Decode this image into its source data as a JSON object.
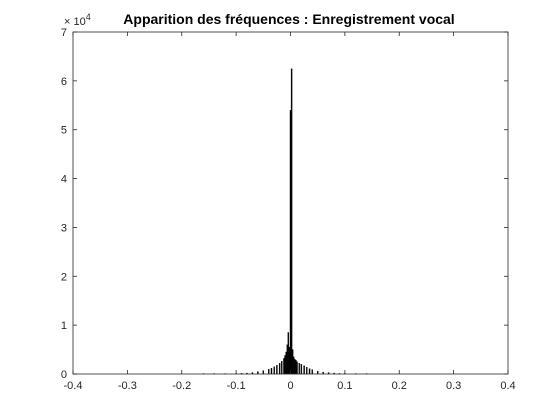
{
  "chart_data": {
    "type": "bar",
    "title": "Apparition des fréquences : Enregistrement vocal",
    "xlabel": "",
    "ylabel": "",
    "xlim": [
      -0.4,
      0.4
    ],
    "ylim": [
      0,
      7
    ],
    "y_multiplier_label": "× 10",
    "y_multiplier_exponent": "4",
    "x_ticks": [
      -0.4,
      -0.3,
      -0.2,
      -0.1,
      0,
      0.1,
      0.2,
      0.3,
      0.4
    ],
    "x_tick_labels": [
      "-0.4",
      "-0.3",
      "-0.2",
      "-0.1",
      "0",
      "0.1",
      "0.2",
      "0.3",
      "0.4"
    ],
    "y_ticks": [
      0,
      1,
      2,
      3,
      4,
      5,
      6,
      7
    ],
    "y_tick_labels": [
      "0",
      "1",
      "2",
      "3",
      "4",
      "5",
      "6",
      "7"
    ],
    "grid": false,
    "bar_color": "#000000",
    "bar_width": 0.002,
    "bins": [
      {
        "x": -0.16,
        "y": 0.002
      },
      {
        "x": -0.14,
        "y": 0.003
      },
      {
        "x": -0.12,
        "y": 0.005
      },
      {
        "x": -0.1,
        "y": 0.01
      },
      {
        "x": -0.09,
        "y": 0.015
      },
      {
        "x": -0.08,
        "y": 0.02
      },
      {
        "x": -0.07,
        "y": 0.03
      },
      {
        "x": -0.06,
        "y": 0.05
      },
      {
        "x": -0.05,
        "y": 0.07
      },
      {
        "x": -0.04,
        "y": 0.1
      },
      {
        "x": -0.035,
        "y": 0.12
      },
      {
        "x": -0.03,
        "y": 0.15
      },
      {
        "x": -0.025,
        "y": 0.18
      },
      {
        "x": -0.02,
        "y": 0.22
      },
      {
        "x": -0.016,
        "y": 0.26
      },
      {
        "x": -0.012,
        "y": 0.32
      },
      {
        "x": -0.01,
        "y": 0.38
      },
      {
        "x": -0.008,
        "y": 0.45
      },
      {
        "x": -0.006,
        "y": 0.6
      },
      {
        "x": -0.004,
        "y": 0.85
      },
      {
        "x": -0.002,
        "y": 0.55
      },
      {
        "x": 0,
        "y": 5.4
      },
      {
        "x": 0.002,
        "y": 6.25
      },
      {
        "x": 0.004,
        "y": 0.5
      },
      {
        "x": 0.006,
        "y": 0.35
      },
      {
        "x": 0.008,
        "y": 0.3
      },
      {
        "x": 0.01,
        "y": 0.28
      },
      {
        "x": 0.012,
        "y": 0.25
      },
      {
        "x": 0.016,
        "y": 0.22
      },
      {
        "x": 0.02,
        "y": 0.2
      },
      {
        "x": 0.025,
        "y": 0.17
      },
      {
        "x": 0.03,
        "y": 0.14
      },
      {
        "x": 0.035,
        "y": 0.11
      },
      {
        "x": 0.04,
        "y": 0.09
      },
      {
        "x": 0.05,
        "y": 0.06
      },
      {
        "x": 0.06,
        "y": 0.04
      },
      {
        "x": 0.07,
        "y": 0.03
      },
      {
        "x": 0.08,
        "y": 0.02
      },
      {
        "x": 0.09,
        "y": 0.012
      },
      {
        "x": 0.1,
        "y": 0.008
      },
      {
        "x": 0.12,
        "y": 0.004
      },
      {
        "x": 0.14,
        "y": 0.002
      }
    ]
  }
}
